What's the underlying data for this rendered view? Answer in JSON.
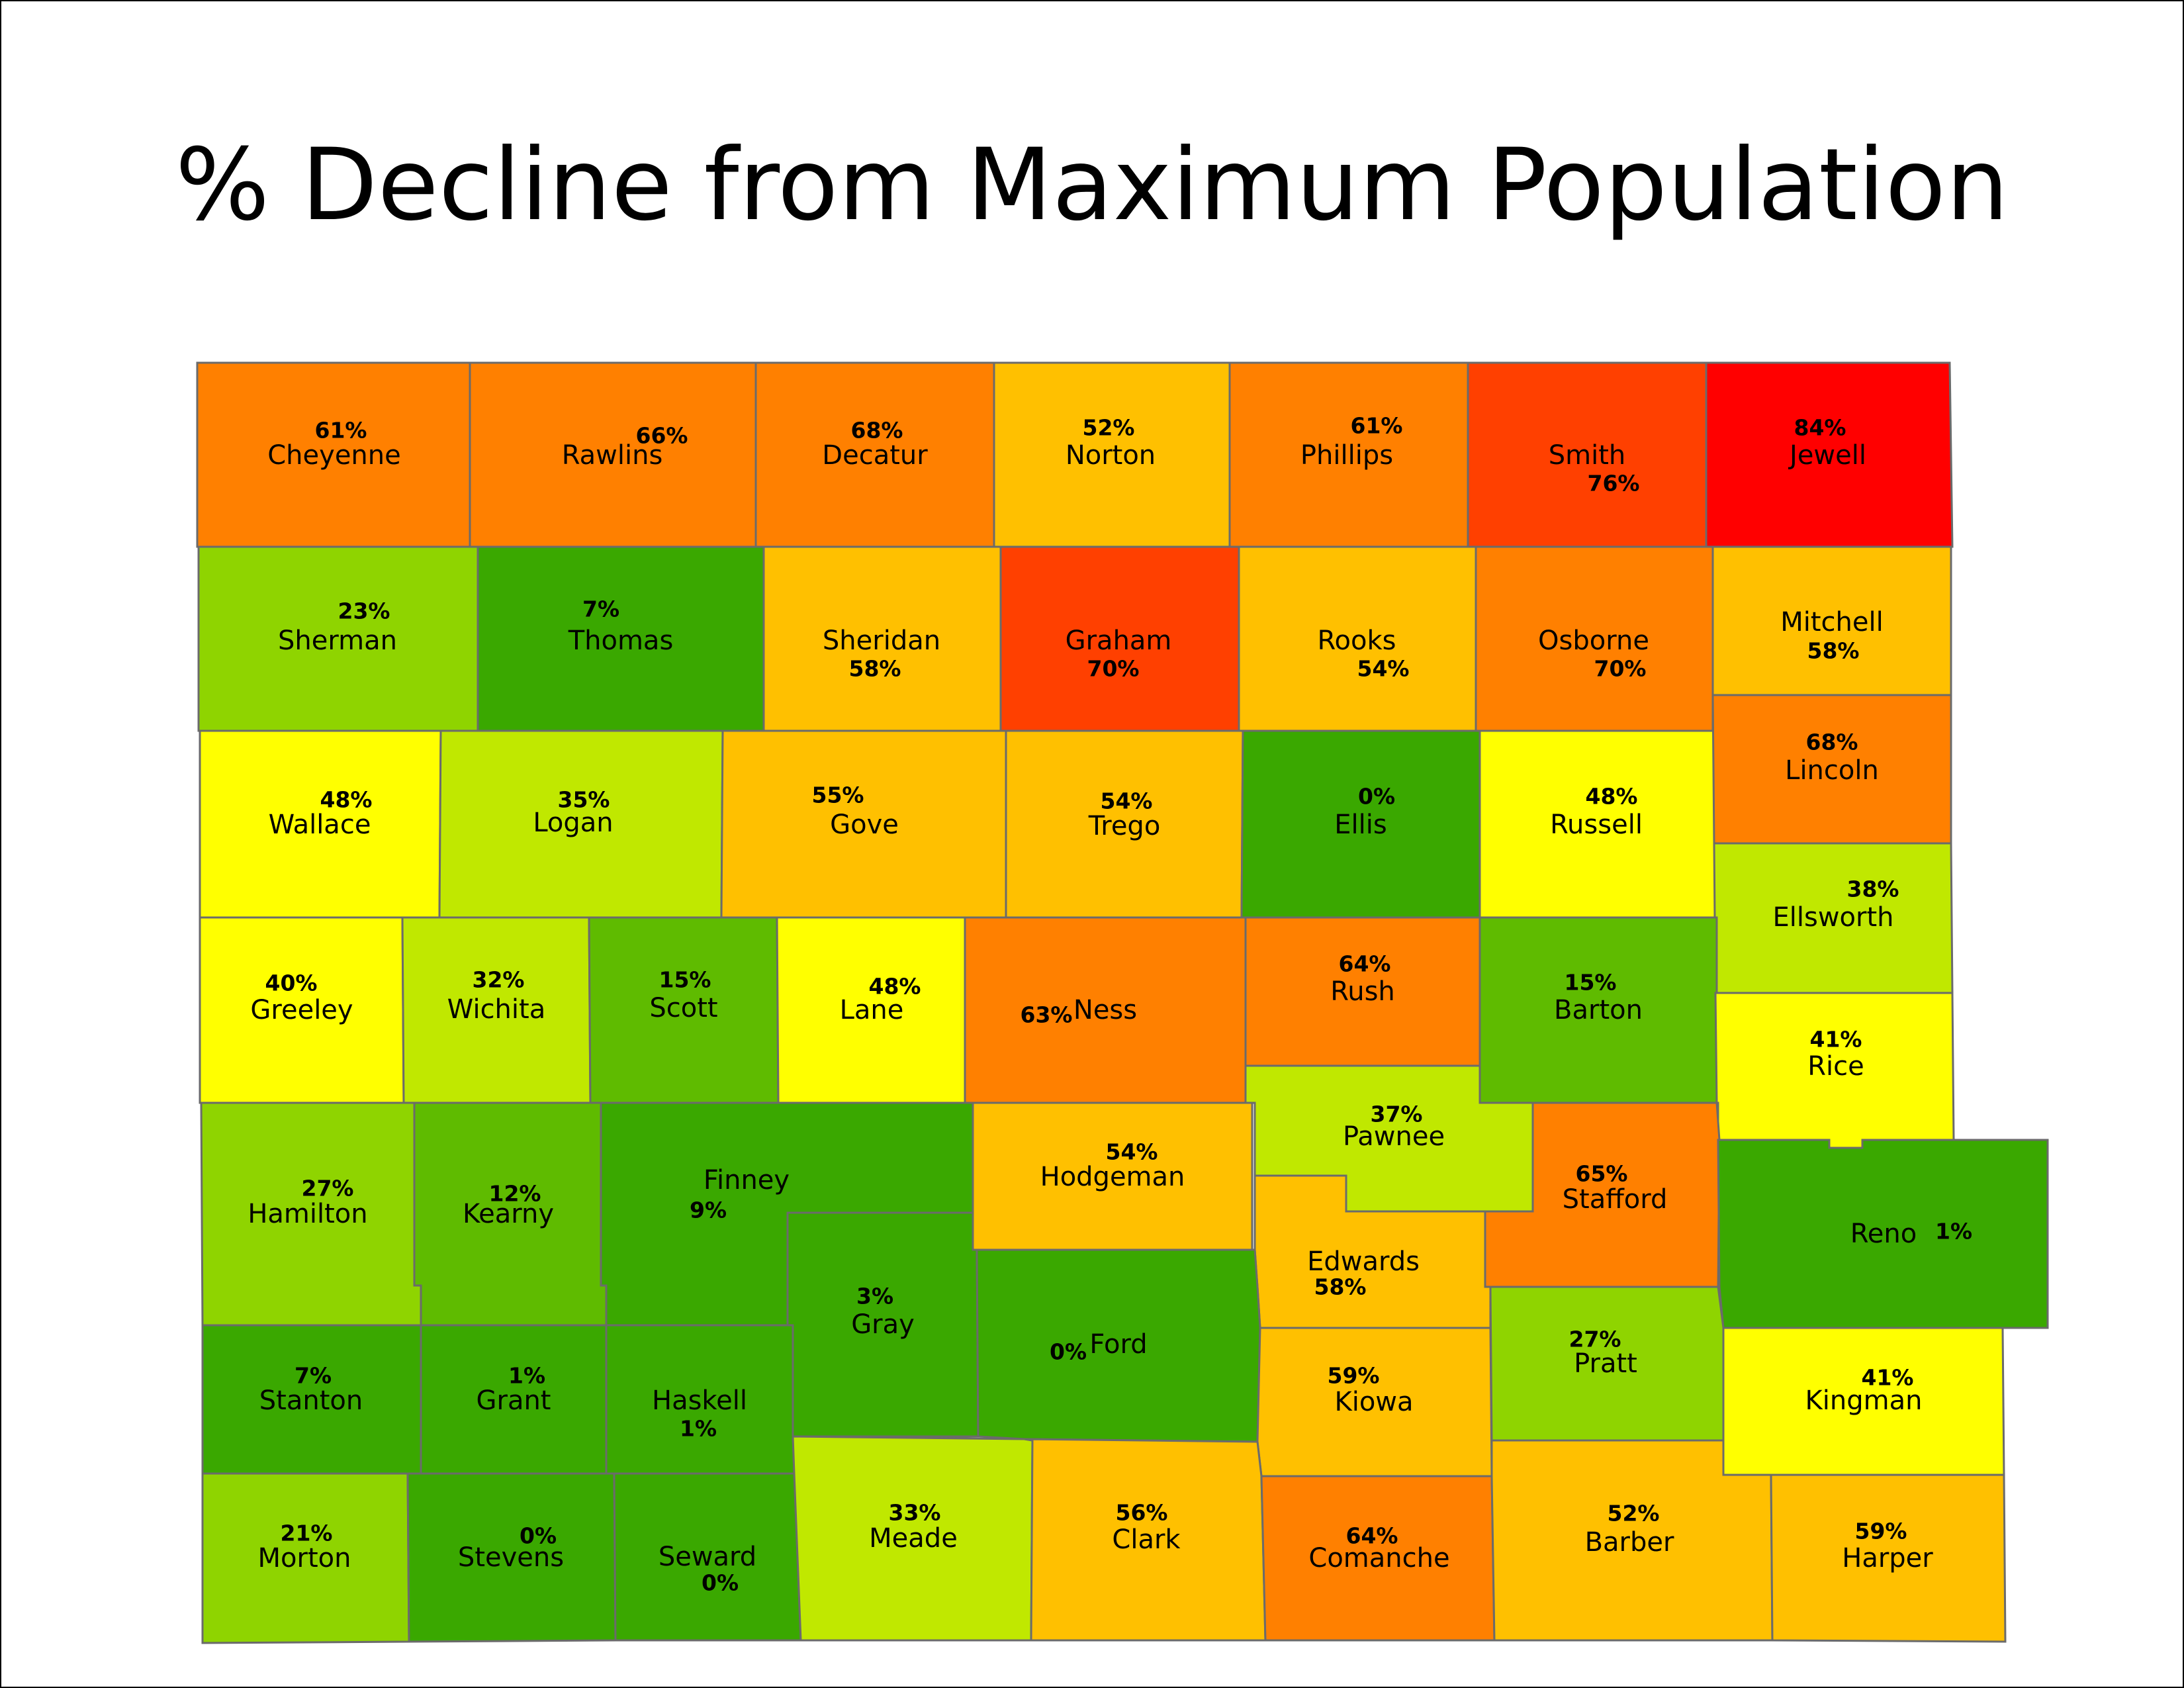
{
  "title": "% Decline from Maximum Population",
  "colors": {
    "red": "#ff0000",
    "red_orange": "#ff4000",
    "orange": "#ff8000",
    "amber": "#ffc000",
    "yellow": "#ffff00",
    "lime": "#c0e800",
    "light_green": "#8fd400",
    "green": "#5fbb00",
    "dark_green": "#3aa800"
  },
  "counties": [
    {
      "name": "Cheyenne",
      "pct": "61%",
      "color": "#ff8000"
    },
    {
      "name": "Rawlins",
      "pct": "66%",
      "color": "#ff8000"
    },
    {
      "name": "Decatur",
      "pct": "68%",
      "color": "#ff8000"
    },
    {
      "name": "Norton",
      "pct": "52%",
      "color": "#ffc000"
    },
    {
      "name": "Phillips",
      "pct": "61%",
      "color": "#ff8000"
    },
    {
      "name": "Smith",
      "pct": "76%",
      "color": "#ff4000"
    },
    {
      "name": "Jewell",
      "pct": "84%",
      "color": "#ff0000"
    },
    {
      "name": "Sherman",
      "pct": "23%",
      "color": "#8fd400"
    },
    {
      "name": "Thomas",
      "pct": "7%",
      "color": "#3aa800"
    },
    {
      "name": "Sheridan",
      "pct": "58%",
      "color": "#ffc000"
    },
    {
      "name": "Graham",
      "pct": "70%",
      "color": "#ff4000"
    },
    {
      "name": "Rooks",
      "pct": "54%",
      "color": "#ffc000"
    },
    {
      "name": "Osborne",
      "pct": "70%",
      "color": "#ff8000"
    },
    {
      "name": "Mitchell",
      "pct": "58%",
      "color": "#ffc000"
    },
    {
      "name": "Wallace",
      "pct": "48%",
      "color": "#ffff00"
    },
    {
      "name": "Logan",
      "pct": "35%",
      "color": "#c0e800"
    },
    {
      "name": "Gove",
      "pct": "55%",
      "color": "#ffc000"
    },
    {
      "name": "Trego",
      "pct": "54%",
      "color": "#ffc000"
    },
    {
      "name": "Ellis",
      "pct": "0%",
      "color": "#3aa800"
    },
    {
      "name": "Russell",
      "pct": "48%",
      "color": "#ffff00"
    },
    {
      "name": "Lincoln",
      "pct": "68%",
      "color": "#ff8000"
    },
    {
      "name": "Ellsworth",
      "pct": "38%",
      "color": "#c0e800"
    },
    {
      "name": "Greeley",
      "pct": "40%",
      "color": "#ffff00"
    },
    {
      "name": "Wichita",
      "pct": "32%",
      "color": "#c0e800"
    },
    {
      "name": "Scott",
      "pct": "15%",
      "color": "#5fbb00"
    },
    {
      "name": "Lane",
      "pct": "48%",
      "color": "#ffff00"
    },
    {
      "name": "Ness",
      "pct": "63%",
      "color": "#ff8000"
    },
    {
      "name": "Rush",
      "pct": "64%",
      "color": "#ff8000"
    },
    {
      "name": "Barton",
      "pct": "15%",
      "color": "#5fbb00"
    },
    {
      "name": "Rice",
      "pct": "41%",
      "color": "#ffff00"
    },
    {
      "name": "Pawnee",
      "pct": "37%",
      "color": "#c0e800"
    },
    {
      "name": "Hamilton",
      "pct": "27%",
      "color": "#8fd400"
    },
    {
      "name": "Kearny",
      "pct": "12%",
      "color": "#5fbb00"
    },
    {
      "name": "Finney",
      "pct": "9%",
      "color": "#3aa800"
    },
    {
      "name": "Hodgeman",
      "pct": "54%",
      "color": "#ffc000"
    },
    {
      "name": "Stafford",
      "pct": "65%",
      "color": "#ff8000"
    },
    {
      "name": "Reno",
      "pct": "1%",
      "color": "#3aa800"
    },
    {
      "name": "Edwards",
      "pct": "58%",
      "color": "#ffc000"
    },
    {
      "name": "Gray",
      "pct": "3%",
      "color": "#3aa800"
    },
    {
      "name": "Ford",
      "pct": "0%",
      "color": "#3aa800"
    },
    {
      "name": "Stanton",
      "pct": "7%",
      "color": "#3aa800"
    },
    {
      "name": "Grant",
      "pct": "1%",
      "color": "#3aa800"
    },
    {
      "name": "Haskell",
      "pct": "1%",
      "color": "#3aa800"
    },
    {
      "name": "Kiowa",
      "pct": "59%",
      "color": "#ffc000"
    },
    {
      "name": "Pratt",
      "pct": "27%",
      "color": "#8fd400"
    },
    {
      "name": "Kingman",
      "pct": "41%",
      "color": "#ffff00"
    },
    {
      "name": "Morton",
      "pct": "21%",
      "color": "#8fd400"
    },
    {
      "name": "Stevens",
      "pct": "0%",
      "color": "#3aa800"
    },
    {
      "name": "Seward",
      "pct": "0%",
      "color": "#3aa800"
    },
    {
      "name": "Meade",
      "pct": "33%",
      "color": "#c0e800"
    },
    {
      "name": "Clark",
      "pct": "56%",
      "color": "#ffc000"
    },
    {
      "name": "Comanche",
      "pct": "64%",
      "color": "#ff8000"
    },
    {
      "name": "Barber",
      "pct": "52%",
      "color": "#ffc000"
    },
    {
      "name": "Harper",
      "pct": "59%",
      "color": "#ffc000"
    }
  ]
}
